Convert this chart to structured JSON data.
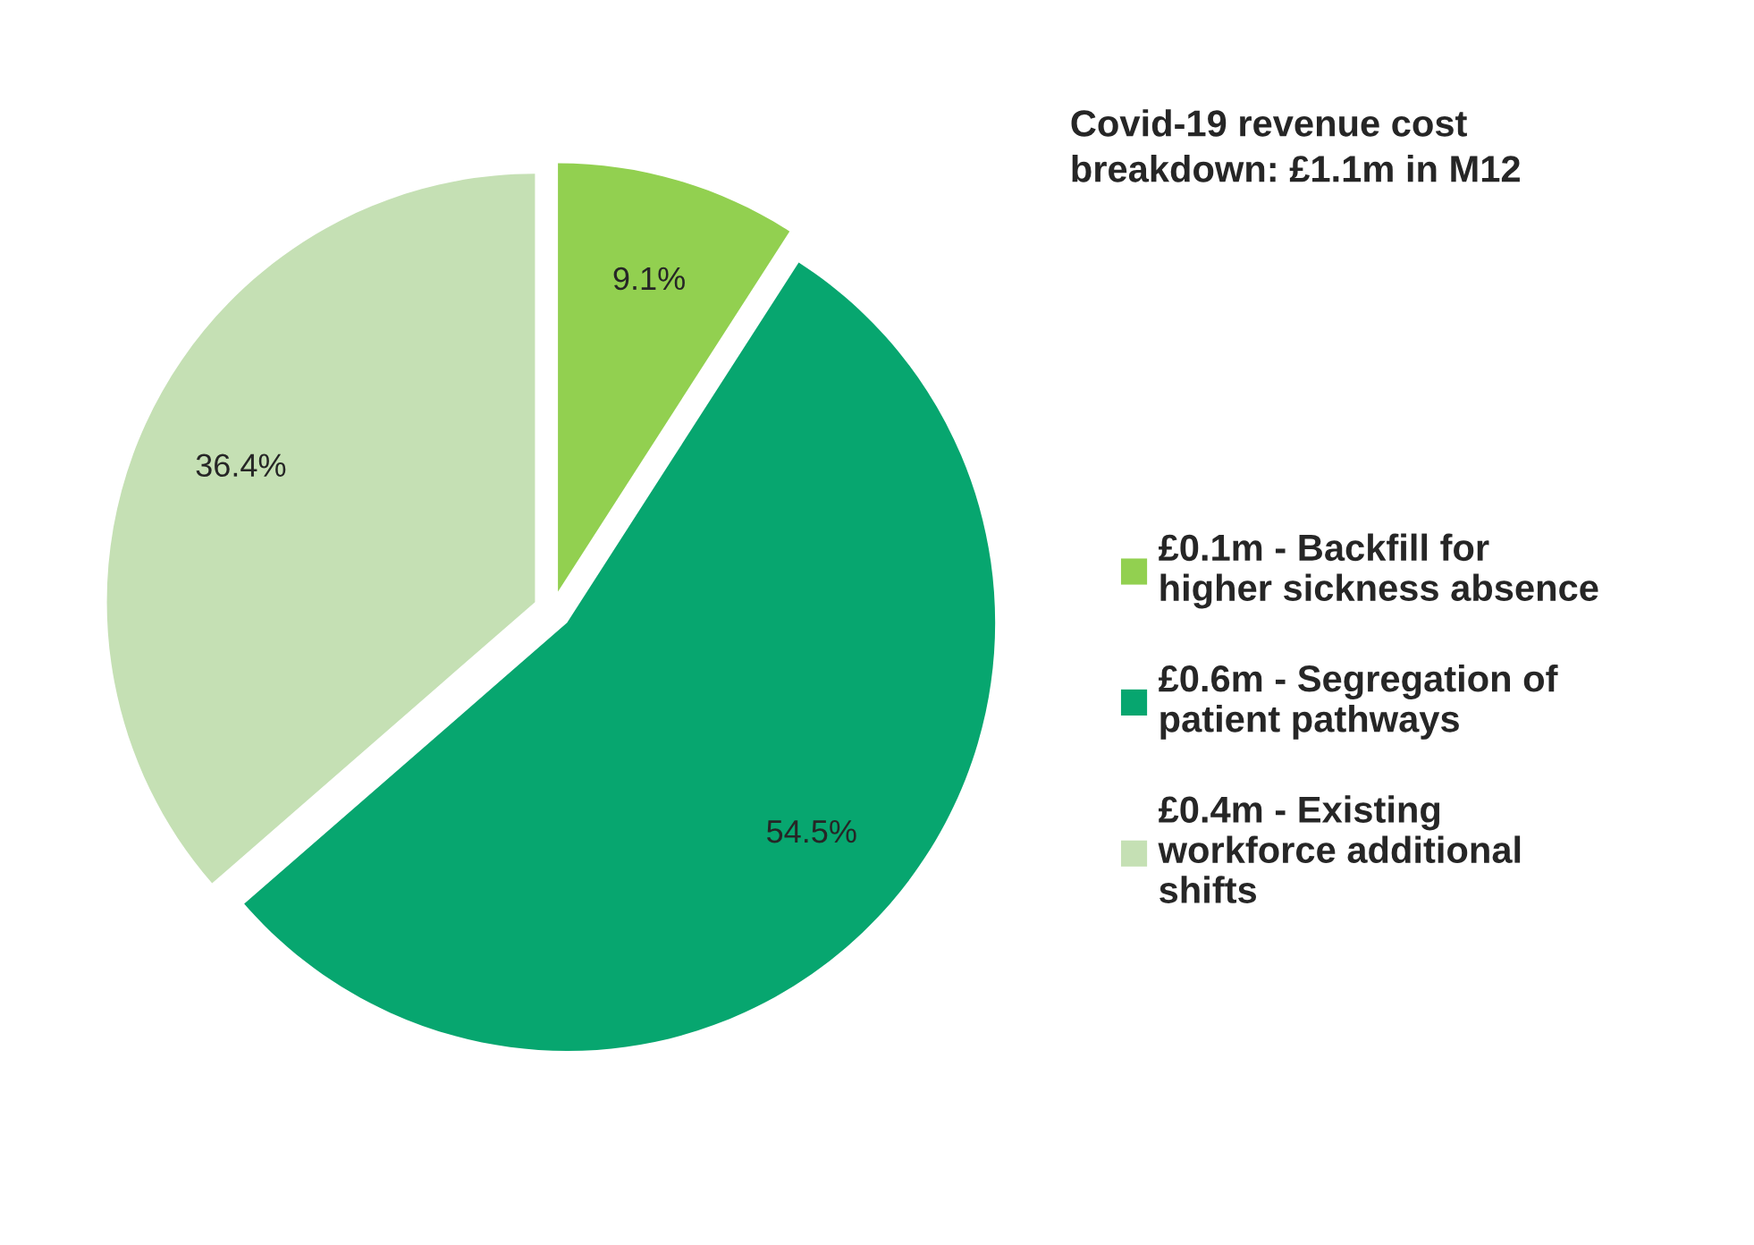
{
  "chart_data": {
    "type": "pie",
    "title": "Covid-19 revenue cost\nbreakdown: £1.1m in M12",
    "categories": [
      "£0.1m - Backfill for\nhigher sickness absence",
      "£0.6m - Segregation of\npatient pathways",
      "£0.4m - Existing\nworkforce additional\nshifts"
    ],
    "values": [
      9.1,
      54.5,
      36.4
    ],
    "value_labels": [
      "9.1%",
      "54.5%",
      "36.4%"
    ],
    "colors": [
      "#92d050",
      "#07a66f",
      "#c5e0b4"
    ],
    "legend": "right"
  }
}
